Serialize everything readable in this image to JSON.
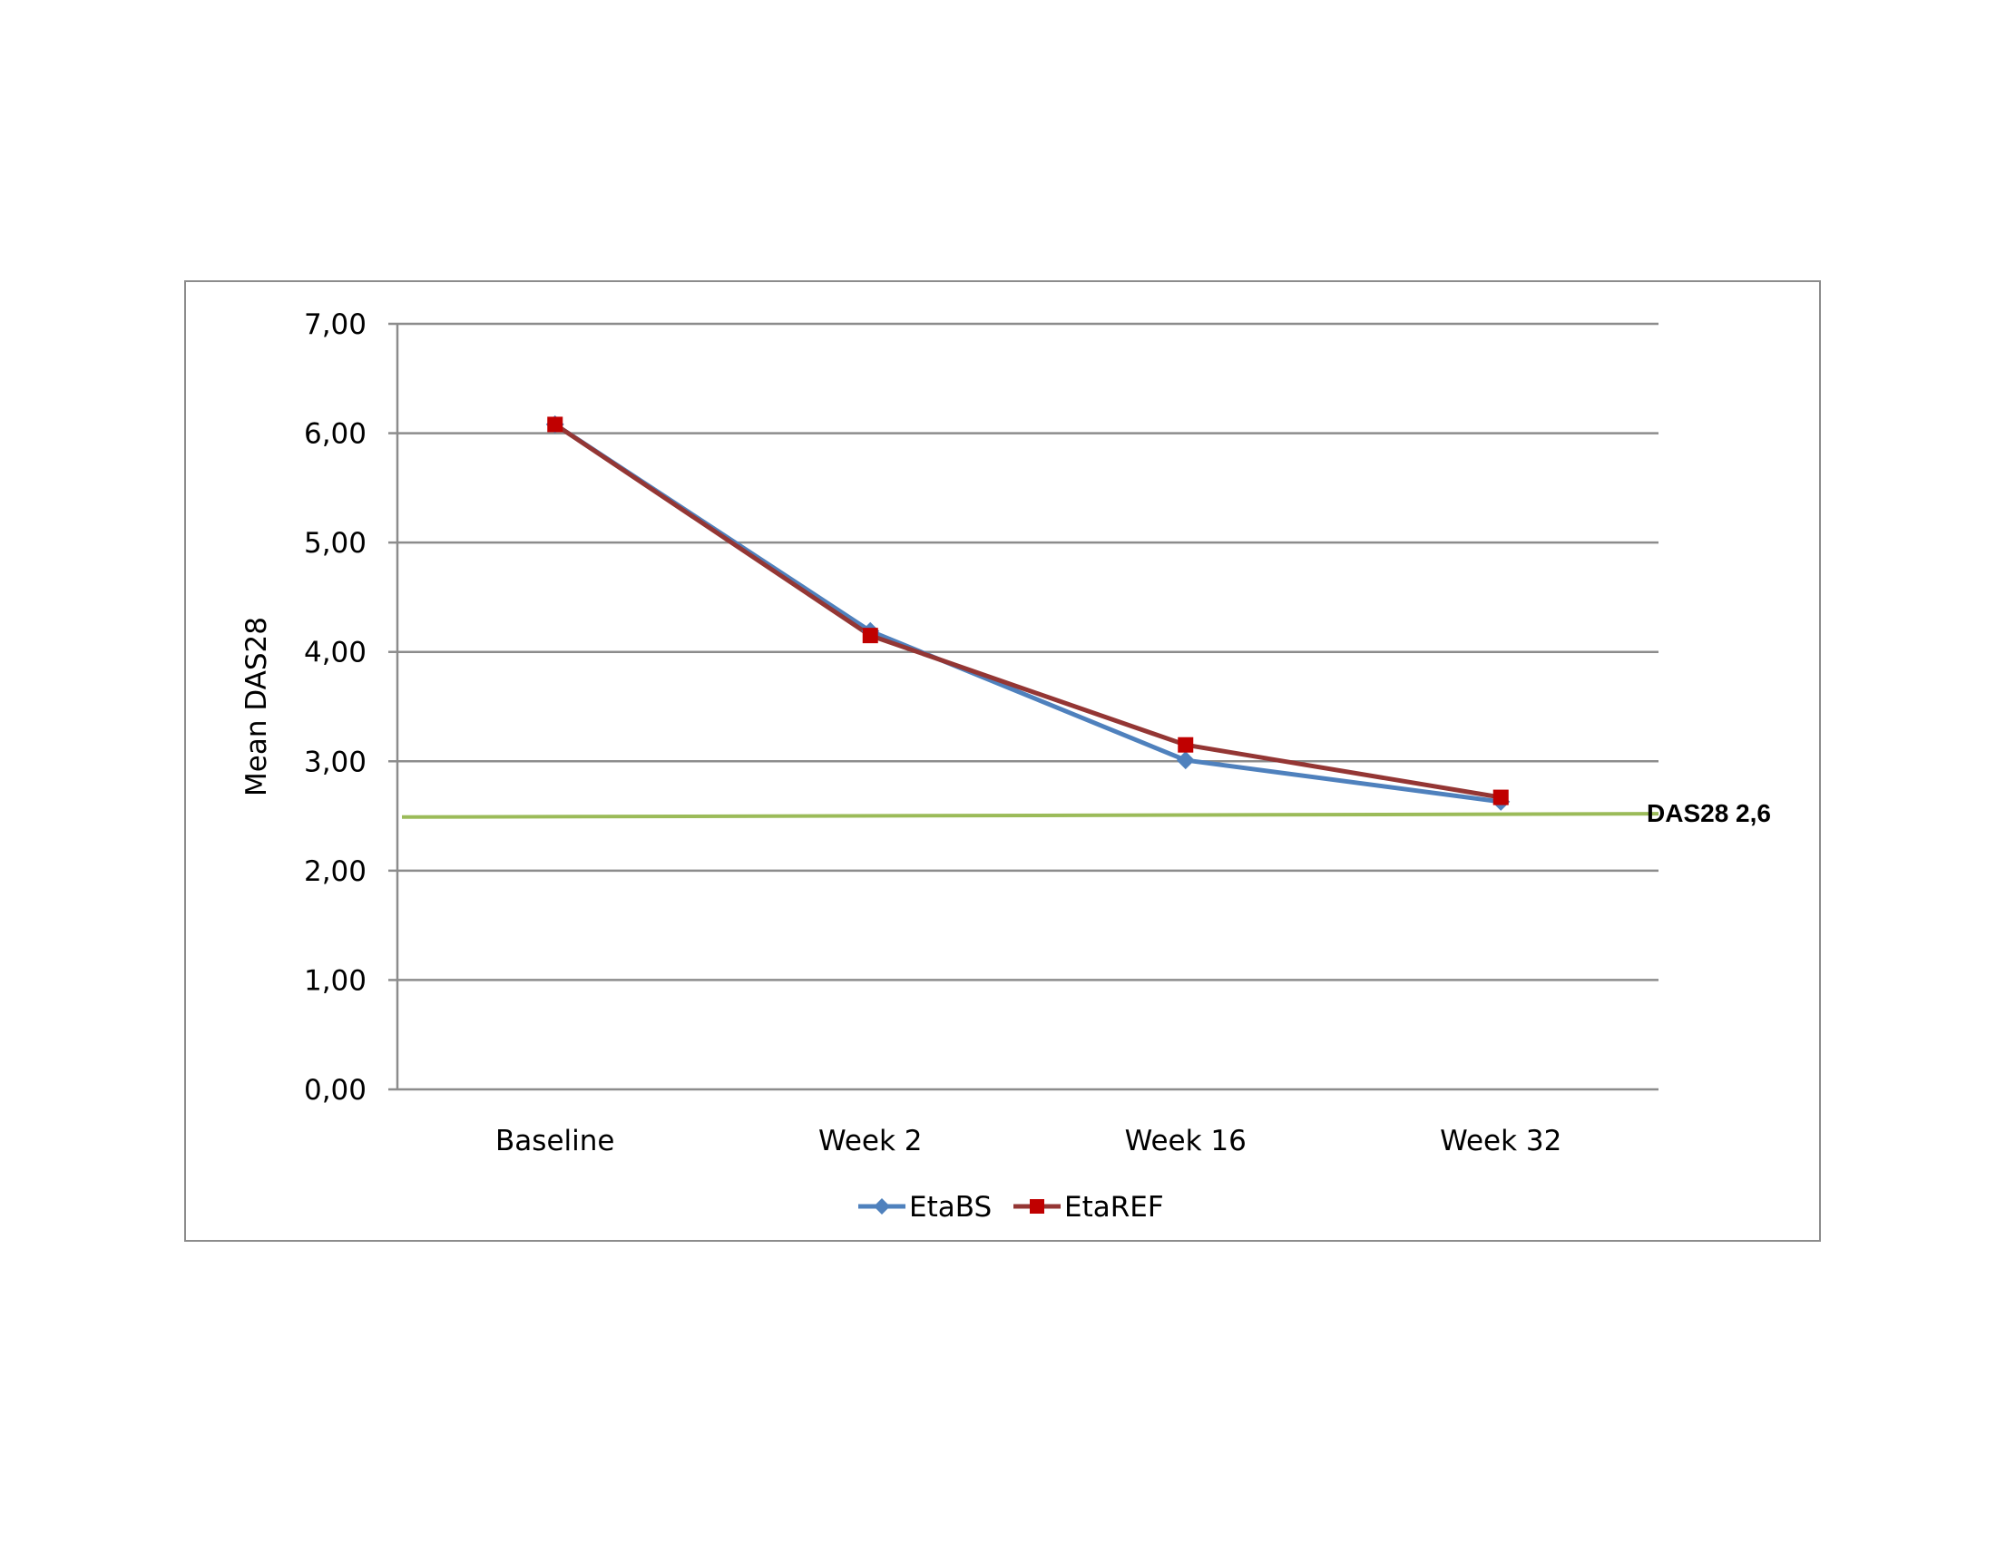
{
  "chart_data": {
    "type": "line",
    "title": "",
    "xlabel": "",
    "ylabel": "Mean DAS28",
    "categories": [
      "Baseline",
      "Week 2",
      "Week 16",
      "Week 32"
    ],
    "series": [
      {
        "name": "EtaBS",
        "values": [
          6.08,
          4.19,
          3.01,
          2.63
        ],
        "color": "#4F81BD",
        "marker": "diamond"
      },
      {
        "name": "EtaREF",
        "values": [
          6.08,
          4.15,
          3.15,
          2.67
        ],
        "color": "#C00000",
        "line_color": "#943634",
        "marker": "square"
      }
    ],
    "y_ticks": [
      "0,00",
      "1,00",
      "2,00",
      "3,00",
      "4,00",
      "5,00",
      "6,00",
      "7,00"
    ],
    "ylim": [
      0,
      7
    ],
    "grid": "horizontal",
    "legend_position": "bottom",
    "reference_line": {
      "label": "DAS28 2,6",
      "y_start": 2.49,
      "y_end": 2.52,
      "color": "#9BBB59"
    }
  }
}
